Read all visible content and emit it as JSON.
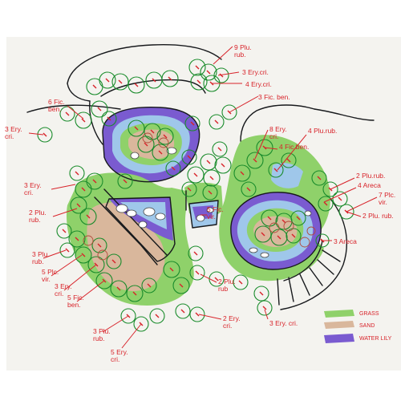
{
  "labels": {
    "l1": "9 Plu.\nrub.",
    "l2": "3 Ery.cri.",
    "l3": "4 Ery.cri.",
    "l4": "3 Fic. ben.",
    "l5": "6 Fic.\nben.",
    "l6": "3 Ery.\ncri.",
    "l7": "8 Ery.\ncri.",
    "l8": "4 Fic.ben.",
    "l9": "4 Plu.rub.",
    "l10": "3 Ery.\ncri.",
    "l11": "2 Plu.\nrub.",
    "l12": "5 Fic.\nvir.",
    "l13": "2 Plu.rub.",
    "l14": "4 Areca",
    "l15": "7 Plc.\nvir.",
    "l16": "2 Plu. rub.",
    "l17": "3 Plu.\nrub.",
    "l18": "5 Plc.\nvir.",
    "l19": "3 Ery.\ncri.",
    "l20": "5 Fic.\nben.",
    "l21": "3 Plu.\nrub.",
    "l22": "5 Ery.\ncri.",
    "l23": "2 Plu.\nrub",
    "l24": "2 Ery.\ncri.",
    "l25": "3 Ery. cri.",
    "l26": "3 Areca"
  },
  "legend": {
    "grass_label": "GRASS",
    "sand_label": "SAND",
    "lily_label": "WATER LILY",
    "grass_color": "#8fd16a",
    "sand_color": "#d9b79c",
    "lily_color": "#7a5bd0"
  },
  "colors": {
    "ink": "#17191c",
    "tree_outline": "#1a8c2c",
    "label_red": "#d8232a",
    "water": "#9fc7ea"
  }
}
